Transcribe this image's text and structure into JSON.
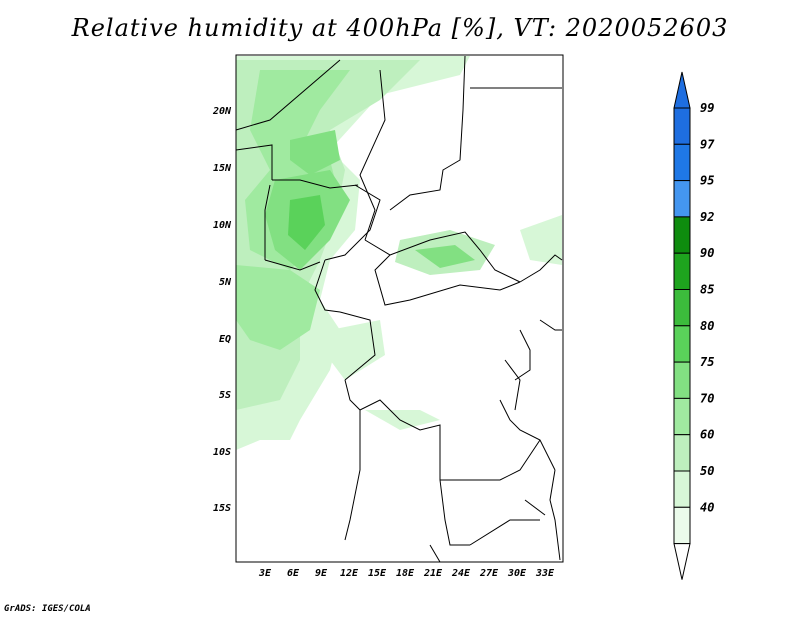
{
  "title": "Relative humidity at 400hPa [%], VT: 2020052603",
  "credit": "GrADS: IGES/COLA",
  "map": {
    "lat_labels": [
      "20N",
      "15N",
      "10N",
      "5N",
      "EQ",
      "5S",
      "10S",
      "15S"
    ],
    "lon_labels": [
      "3E",
      "6E",
      "9E",
      "12E",
      "15E",
      "18E",
      "21E",
      "24E",
      "27E",
      "30E",
      "33E"
    ]
  },
  "colorbar": {
    "levels": [
      "99",
      "97",
      "95",
      "92",
      "90",
      "85",
      "80",
      "75",
      "70",
      "60",
      "50",
      "40"
    ],
    "colors": [
      "#1e6ee0",
      "#1f78e6",
      "#4496f0",
      "#0e8c0e",
      "#1ea41e",
      "#3cbc3c",
      "#5ad25a",
      "#82e082",
      "#a0eaa0",
      "#beefbe",
      "#d7f7d7",
      "#ebfbeb"
    ]
  }
}
